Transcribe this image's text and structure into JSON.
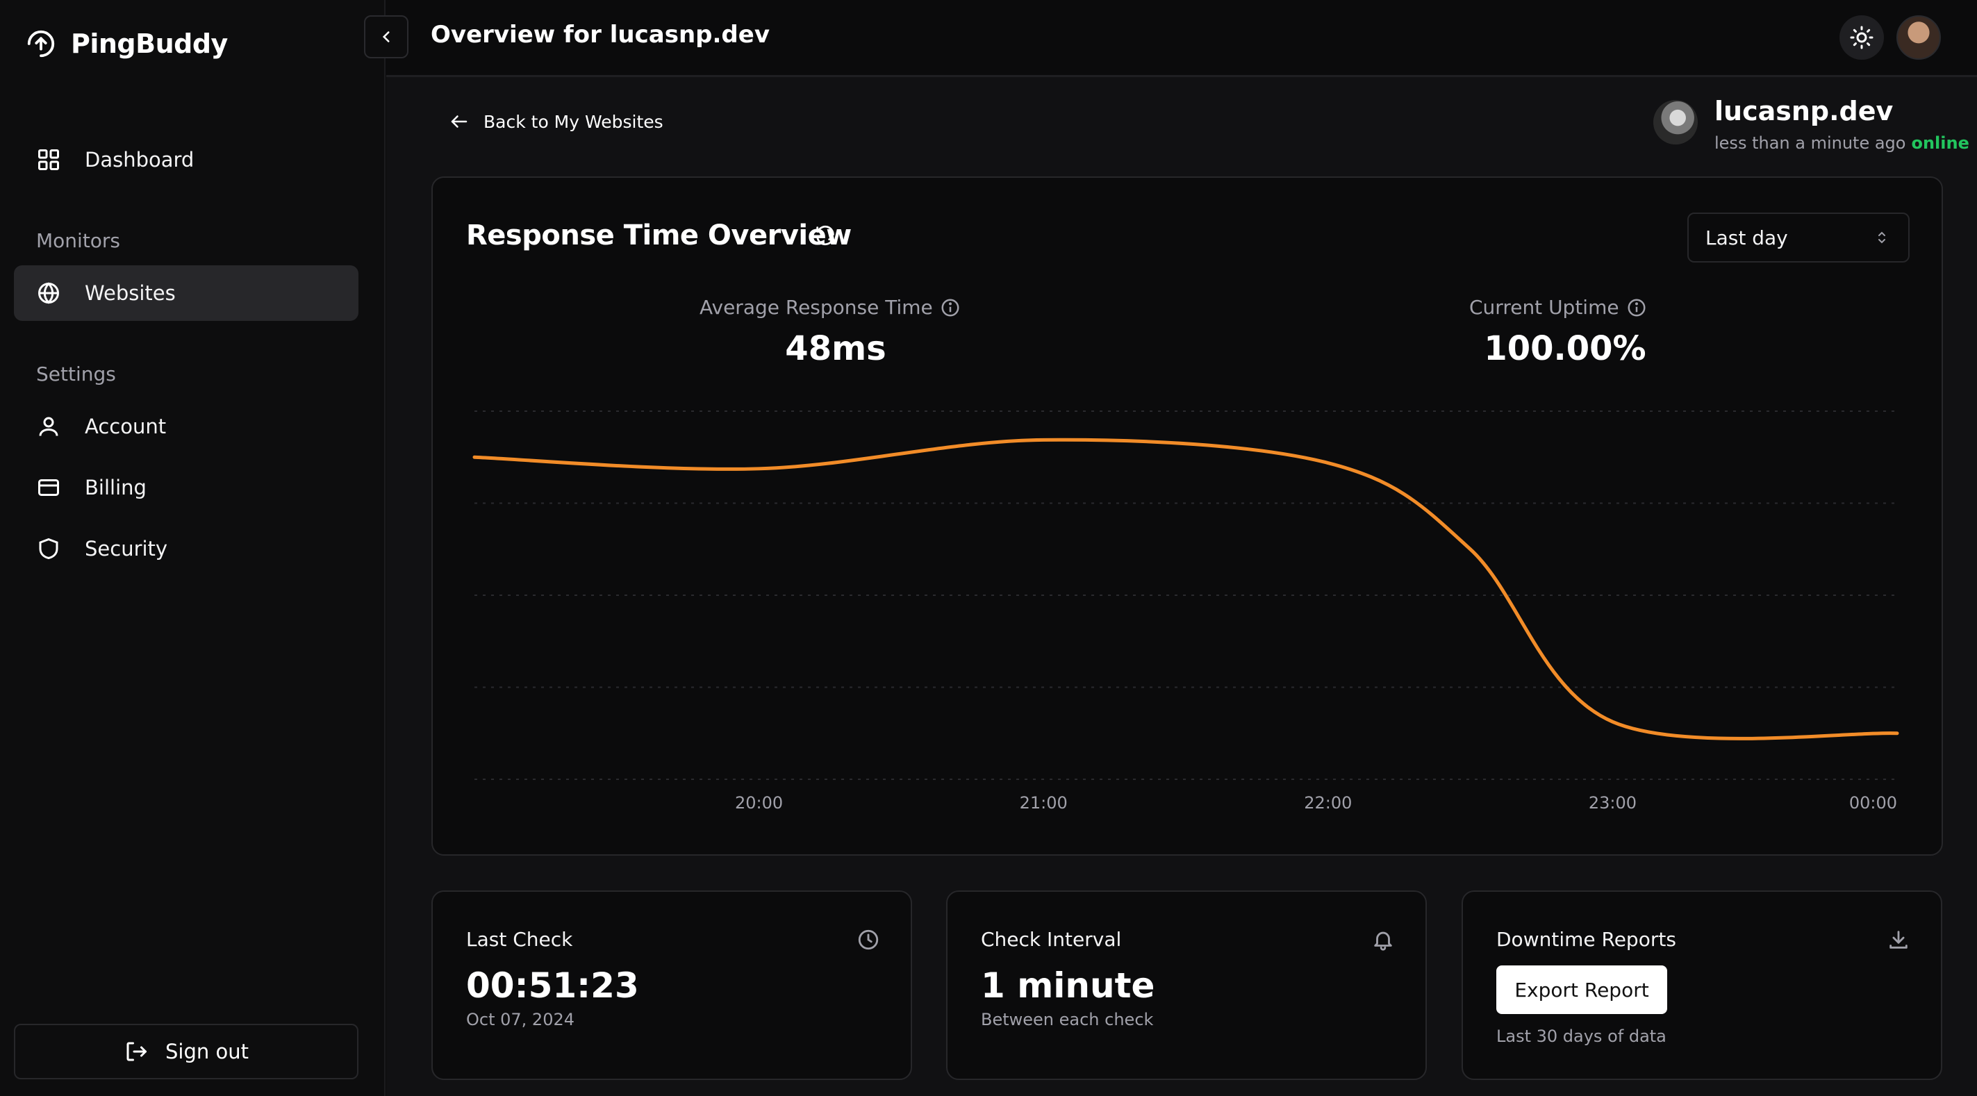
{
  "brand": {
    "name": "PingBuddy"
  },
  "sidebar": {
    "dashboard": "Dashboard",
    "monitors_heading": "Monitors",
    "websites": "Websites",
    "settings_heading": "Settings",
    "account": "Account",
    "billing": "Billing",
    "security": "Security",
    "sign_out": "Sign out"
  },
  "header": {
    "title": "Overview for lucasnp.dev"
  },
  "back_link": "Back to My Websites",
  "site": {
    "name": "lucasnp.dev",
    "last_seen": "less than a minute ago",
    "status": "online"
  },
  "overview": {
    "title": "Response Time Overview",
    "range": "Last day",
    "avg_label": "Average Response Time",
    "avg_value": "48ms",
    "uptime_label": "Current Uptime",
    "uptime_value": "100.00%"
  },
  "colors": {
    "accent": "#f28c28",
    "online": "#22c55e"
  },
  "chart_data": {
    "type": "line",
    "x": [
      "19:00",
      "20:00",
      "21:00",
      "22:00",
      "22:30",
      "23:00",
      "00:00"
    ],
    "tick_labels": [
      "20:00",
      "21:00",
      "22:00",
      "23:00",
      "00:00"
    ],
    "values": [
      56,
      54,
      59,
      55,
      40,
      10,
      8
    ],
    "ylim": [
      0,
      64
    ],
    "grid": true,
    "color": "#f28c28"
  },
  "cards": {
    "last_check": {
      "title": "Last Check",
      "value": "00:51:23",
      "sub": "Oct 07, 2024"
    },
    "interval": {
      "title": "Check Interval",
      "value": "1 minute",
      "sub": "Between each check"
    },
    "downtime": {
      "title": "Downtime Reports",
      "button": "Export Report",
      "sub": "Last 30 days of data"
    }
  }
}
